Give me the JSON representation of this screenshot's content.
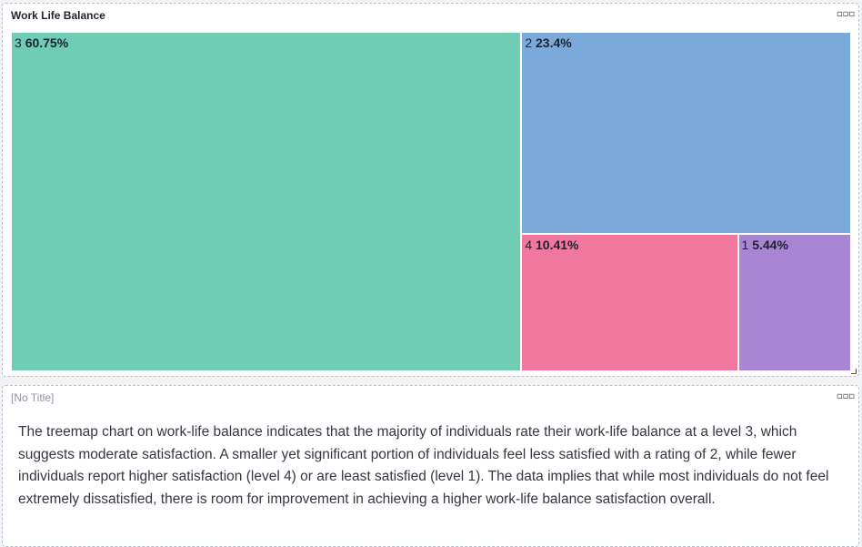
{
  "chart_panel": {
    "title": "Work Life Balance",
    "menu_glyph": "▫▫▫"
  },
  "text_panel": {
    "title": "[No Title]",
    "menu_glyph": "▫▫▫",
    "body": "The treemap chart on work-life balance indicates that the majority of individuals rate their work-life balance at a level 3, which suggests moderate satisfaction. A smaller yet significant portion of individuals feel less satisfied with a rating of 2, while fewer individuals report higher satisfaction (level 4) or are least satisfied (level 1). The data implies that while most individuals do not feel extremely dissatisfied, there is room for improvement in achieving a higher work-life balance satisfaction overall."
  },
  "chart_data": {
    "type": "treemap",
    "title": "Work Life Balance",
    "items": [
      {
        "name": "3",
        "value": 60.75,
        "label": "60.75%",
        "color": "#6fcdb3"
      },
      {
        "name": "2",
        "value": 23.4,
        "label": "23.4%",
        "color": "#7aa9da"
      },
      {
        "name": "4",
        "value": 10.41,
        "label": "10.41%",
        "color": "#f0789e"
      },
      {
        "name": "1",
        "value": 5.44,
        "label": "5.44%",
        "color": "#a886d4"
      }
    ]
  }
}
